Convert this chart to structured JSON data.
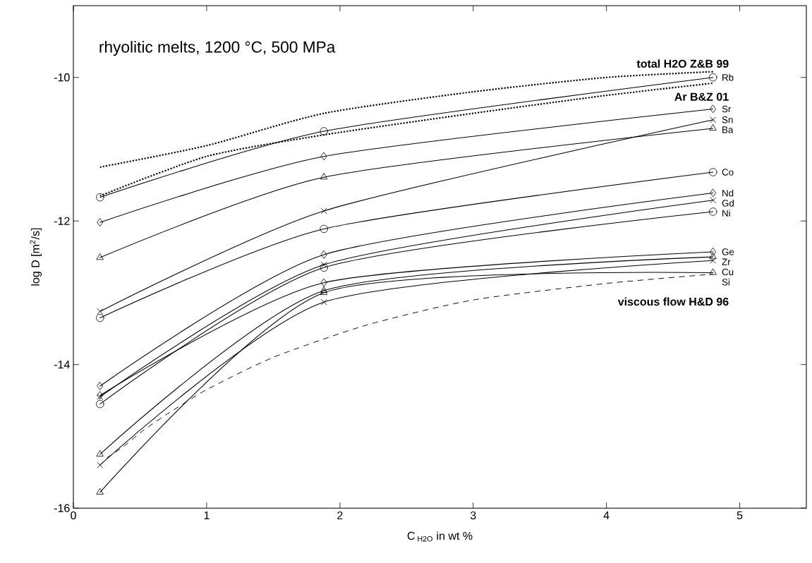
{
  "chart_data": {
    "type": "line",
    "title": "rhyolitic melts, 1200 °C, 500 MPa",
    "xlabel": "C$_{ H2O}$  in wt %",
    "ylabel": "log D [m$^{2}$/s]",
    "xlim": [
      0,
      5.5
    ],
    "ylim": [
      -16,
      -9
    ],
    "xticks": [
      0,
      1,
      2,
      3,
      4,
      5
    ],
    "yticks": [
      -16,
      -14,
      -12,
      -10
    ],
    "grid": false,
    "legend": false,
    "line_style": "solid",
    "series": [
      {
        "name": "Rb",
        "color": "#000000",
        "marker": "circle",
        "x": [
          0.2,
          1.88,
          4.8
        ],
        "values": [
          -11.67,
          -10.75,
          -10.0
        ]
      },
      {
        "name": "Sr",
        "color": "#000000",
        "marker": "diamond",
        "x": [
          0.2,
          1.88,
          4.8
        ],
        "values": [
          -12.02,
          -11.1,
          -10.44
        ]
      },
      {
        "name": "Sn",
        "color": "#000000",
        "marker": "cross",
        "x": [
          0.2,
          1.88,
          4.8
        ],
        "values": [
          -13.26,
          -11.86,
          -10.59
        ]
      },
      {
        "name": "Ba",
        "color": "#000000",
        "marker": "triangle",
        "x": [
          0.2,
          1.88,
          4.8
        ],
        "values": [
          -12.51,
          -11.39,
          -10.71
        ]
      },
      {
        "name": "Co",
        "color": "#000000",
        "marker": "circle",
        "x": [
          0.2,
          1.88,
          4.8
        ],
        "values": [
          -13.35,
          -12.11,
          -11.32
        ]
      },
      {
        "name": "Nd",
        "color": "#000000",
        "marker": "diamond",
        "x": [
          0.2,
          1.88,
          4.8
        ],
        "values": [
          -14.3,
          -12.47,
          -11.61
        ]
      },
      {
        "name": "Gd",
        "color": "#000000",
        "marker": "cross",
        "x": [
          0.2,
          1.88,
          4.8
        ],
        "values": [
          -14.45,
          -12.61,
          -11.71
        ]
      },
      {
        "name": "Ni",
        "color": "#000000",
        "marker": "circle",
        "x": [
          0.2,
          1.88,
          4.8
        ],
        "values": [
          -14.55,
          -12.65,
          -11.87
        ]
      },
      {
        "name": "Ge",
        "color": "#000000",
        "marker": "diamond",
        "x": [
          0.2,
          1.88,
          4.8
        ],
        "values": [
          -14.43,
          -12.86,
          -12.43
        ]
      },
      {
        "name": "Zr",
        "color": "#000000",
        "marker": "triangle",
        "x": [
          0.2,
          1.88,
          4.8
        ],
        "values": [
          -15.25,
          -12.97,
          -12.5
        ]
      },
      {
        "name": "Cu",
        "color": "#000000",
        "marker": "cross",
        "x": [
          0.2,
          1.88,
          4.8
        ],
        "values": [
          -15.4,
          -13.13,
          -12.55
        ]
      },
      {
        "name": "Si",
        "color": "#000000",
        "marker": "triangle",
        "x": [
          0.2,
          1.88,
          4.8
        ],
        "values": [
          -15.78,
          -13.0,
          -12.72
        ]
      },
      {
        "name": "total H2O Z&B 99",
        "color": "#000000",
        "marker": "none",
        "line_style": "dotted",
        "x": [
          0.2,
          1,
          1.88,
          3,
          4,
          4.8
        ],
        "values": [
          -11.25,
          -10.95,
          -10.5,
          -10.2,
          -10.0,
          -9.92
        ]
      },
      {
        "name": "Ar  B&Z 01",
        "color": "#000000",
        "marker": "none",
        "line_style": "dotted",
        "x": [
          0.2,
          1,
          1.88,
          3,
          4,
          4.8
        ],
        "values": [
          -11.65,
          -11.1,
          -10.8,
          -10.5,
          -10.25,
          -10.08
        ]
      },
      {
        "name": "viscous flow H&D 96",
        "color": "#000000",
        "marker": "none",
        "line_style": "dashed",
        "x": [
          0.25,
          0.37,
          0.53,
          0.72,
          1,
          1.5,
          2.2,
          3,
          4,
          4.8
        ],
        "values": [
          -15.3,
          -15.15,
          -14.91,
          -14.67,
          -14.35,
          -13.9,
          -13.45,
          -13.1,
          -12.87,
          -12.74
        ]
      }
    ]
  }
}
